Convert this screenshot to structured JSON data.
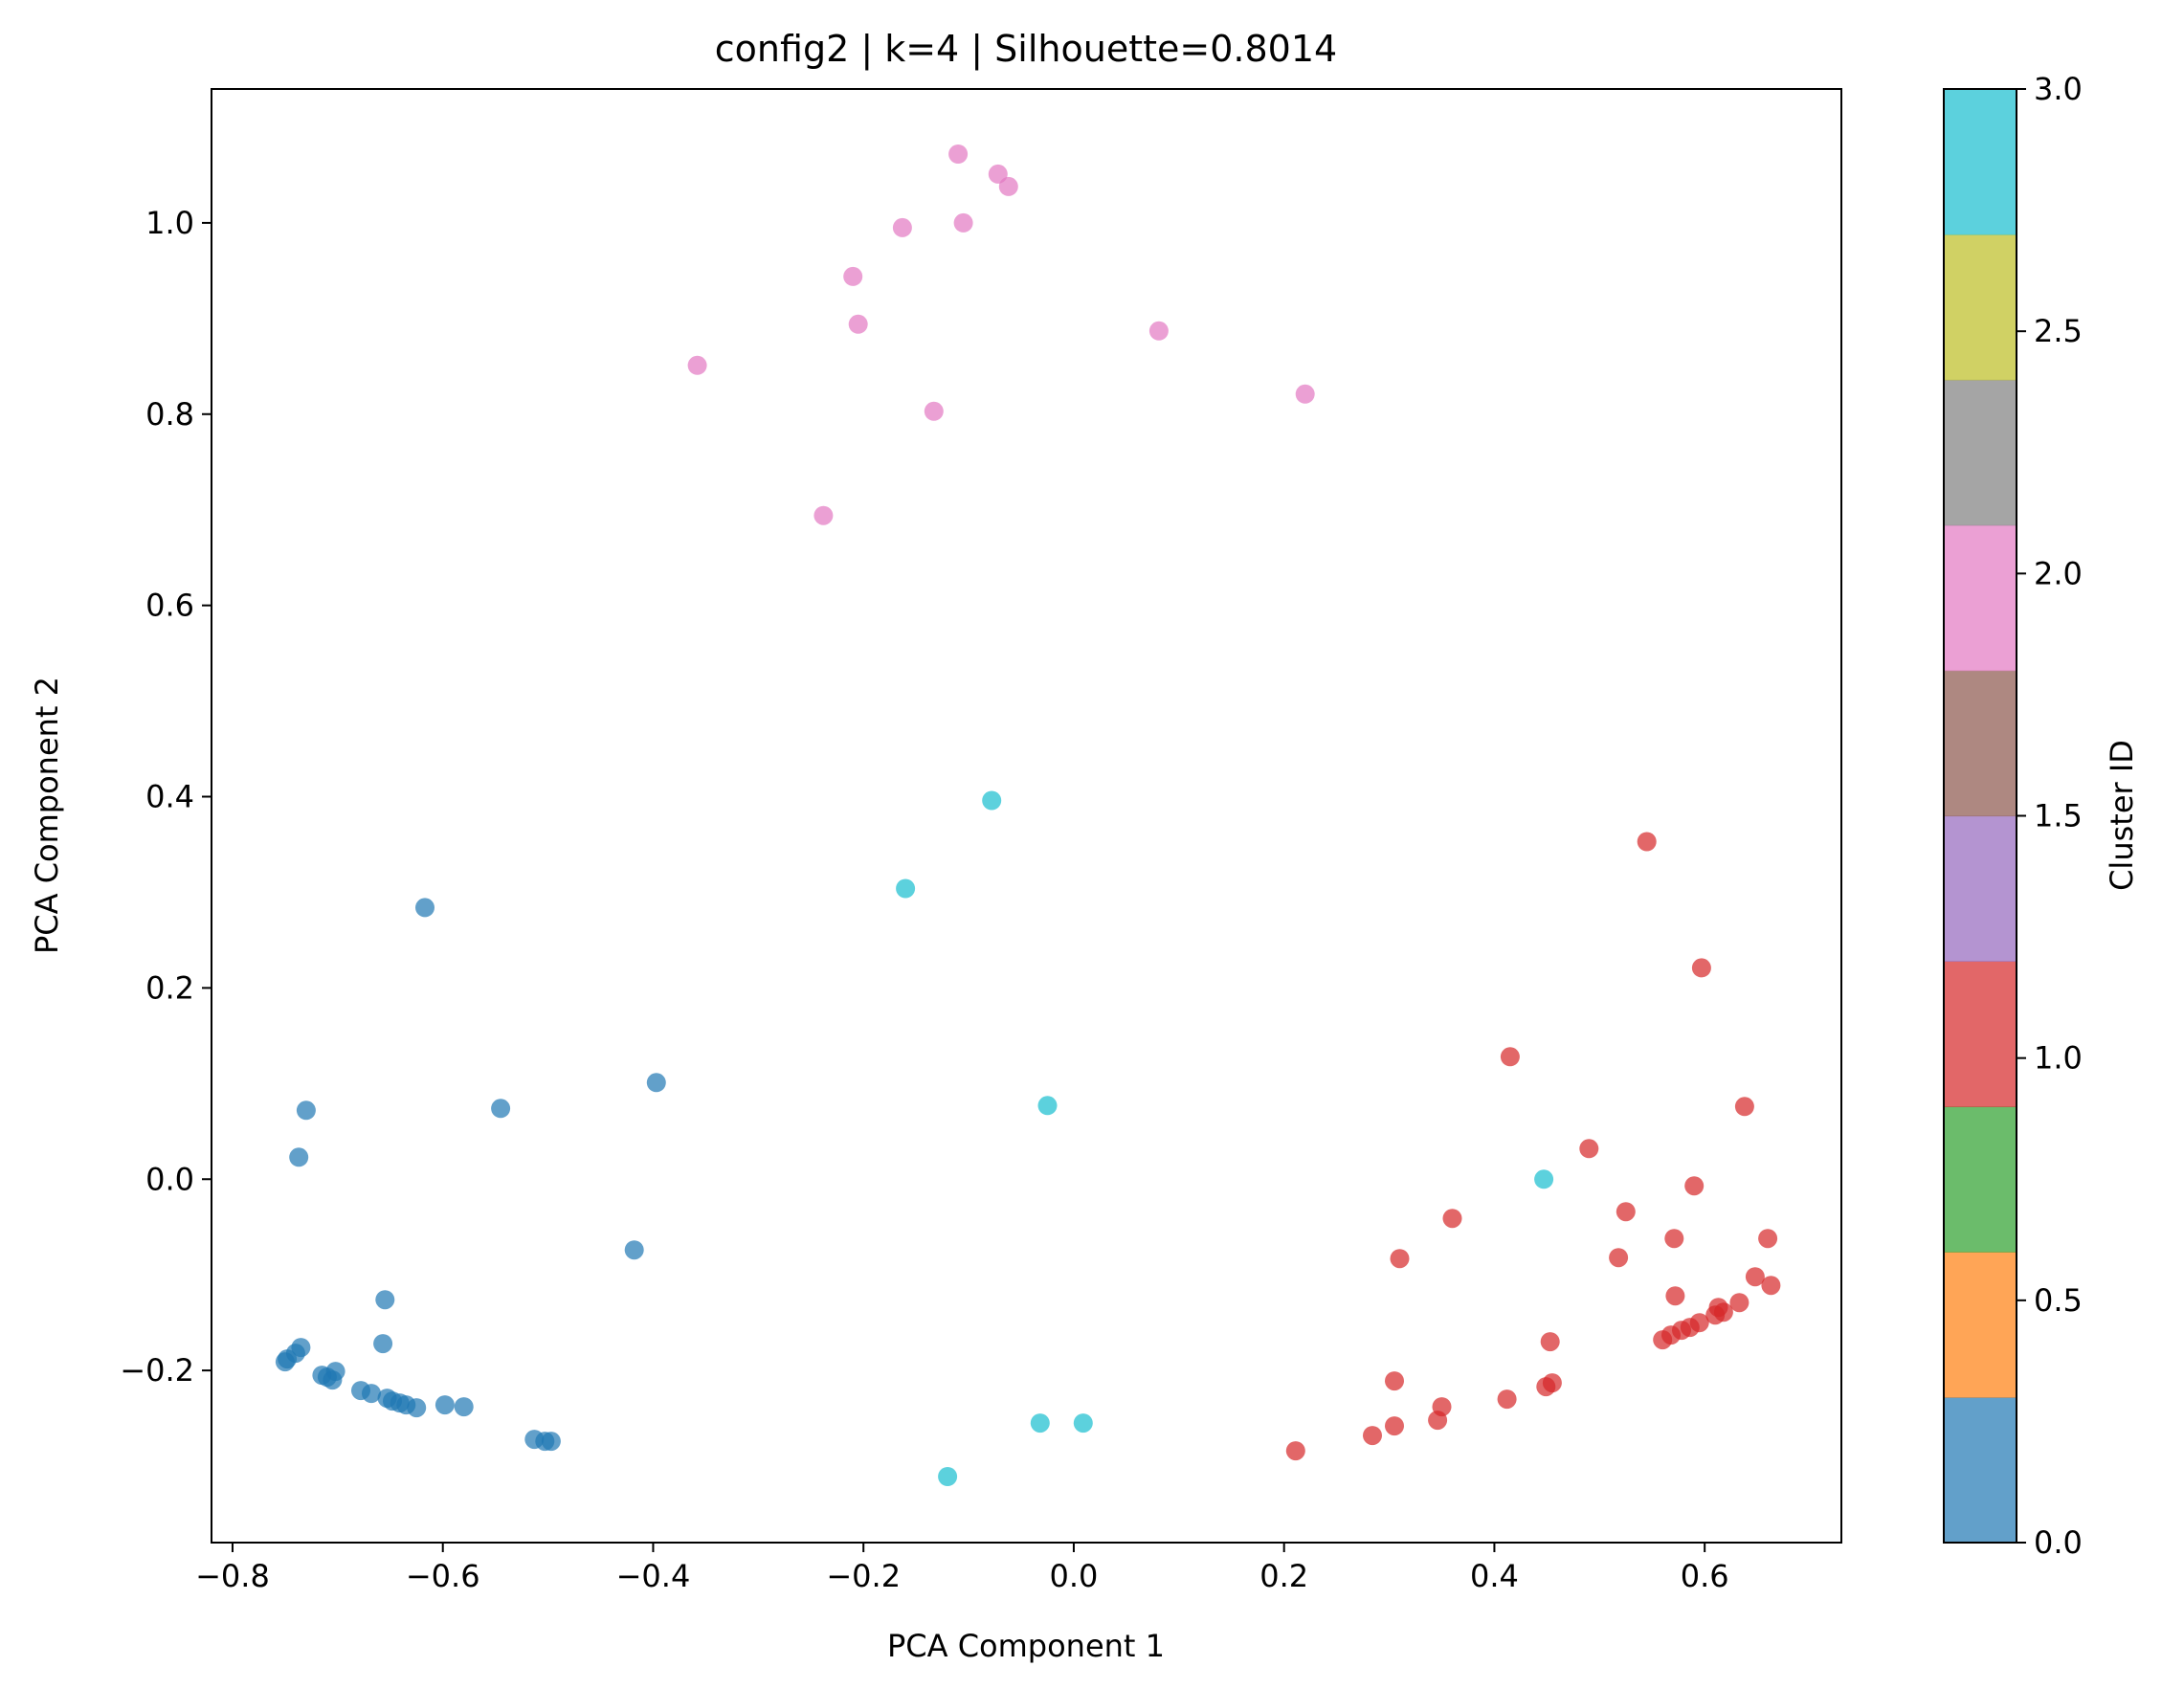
{
  "chart_data": {
    "type": "scatter",
    "title": "config2 | k=4 | Silhouette=0.8014",
    "xlabel": "PCA Component 1",
    "ylabel": "PCA Component 2",
    "xlim": [
      -0.82,
      0.73
    ],
    "ylim": [
      -0.38,
      1.14
    ],
    "xticks": [
      -0.8,
      -0.6,
      -0.4,
      -0.2,
      0.0,
      0.2,
      0.4,
      0.6
    ],
    "xtick_labels": [
      "−0.8",
      "−0.6",
      "−0.4",
      "−0.2",
      "0.0",
      "0.2",
      "0.4",
      "0.6"
    ],
    "yticks": [
      -0.2,
      0.0,
      0.2,
      0.4,
      0.6,
      0.8,
      1.0
    ],
    "ytick_labels": [
      "−0.2",
      "0.0",
      "0.2",
      "0.4",
      "0.6",
      "0.8",
      "1.0"
    ],
    "grid": false,
    "colorbar": {
      "label": "Cluster ID",
      "range": [
        0.0,
        3.0
      ],
      "ticks": [
        0.0,
        0.5,
        1.0,
        1.5,
        2.0,
        2.5,
        3.0
      ],
      "tick_labels": [
        "0.0",
        "0.5",
        "1.0",
        "1.5",
        "2.0",
        "2.5",
        "3.0"
      ],
      "band_colors": [
        "#1f77b4",
        "#ff7f0e",
        "#2ca02c",
        "#d62728",
        "#9467bd",
        "#8c564b",
        "#e377c2",
        "#7f7f7f",
        "#bcbd22",
        "#17becf"
      ]
    },
    "cluster_colors": {
      "0": "#1f77b4",
      "1": "#d62728",
      "2": "#e377c2",
      "3": "#17becf"
    },
    "points": [
      {
        "x": -0.617,
        "y": 0.284,
        "cluster": 0
      },
      {
        "x": -0.73,
        "y": 0.072,
        "cluster": 0
      },
      {
        "x": -0.737,
        "y": 0.023,
        "cluster": 0
      },
      {
        "x": -0.545,
        "y": 0.074,
        "cluster": 0
      },
      {
        "x": -0.397,
        "y": 0.101,
        "cluster": 0
      },
      {
        "x": -0.418,
        "y": -0.074,
        "cluster": 0
      },
      {
        "x": -0.655,
        "y": -0.126,
        "cluster": 0
      },
      {
        "x": -0.657,
        "y": -0.172,
        "cluster": 0
      },
      {
        "x": -0.735,
        "y": -0.176,
        "cluster": 0
      },
      {
        "x": -0.74,
        "y": -0.182,
        "cluster": 0
      },
      {
        "x": -0.748,
        "y": -0.188,
        "cluster": 0
      },
      {
        "x": -0.75,
        "y": -0.191,
        "cluster": 0
      },
      {
        "x": -0.715,
        "y": -0.205,
        "cluster": 0
      },
      {
        "x": -0.71,
        "y": -0.207,
        "cluster": 0
      },
      {
        "x": -0.705,
        "y": -0.21,
        "cluster": 0
      },
      {
        "x": -0.702,
        "y": -0.201,
        "cluster": 0
      },
      {
        "x": -0.678,
        "y": -0.221,
        "cluster": 0
      },
      {
        "x": -0.668,
        "y": -0.224,
        "cluster": 0
      },
      {
        "x": -0.653,
        "y": -0.229,
        "cluster": 0
      },
      {
        "x": -0.648,
        "y": -0.232,
        "cluster": 0
      },
      {
        "x": -0.641,
        "y": -0.234,
        "cluster": 0
      },
      {
        "x": -0.635,
        "y": -0.236,
        "cluster": 0
      },
      {
        "x": -0.625,
        "y": -0.239,
        "cluster": 0
      },
      {
        "x": -0.598,
        "y": -0.236,
        "cluster": 0
      },
      {
        "x": -0.58,
        "y": -0.238,
        "cluster": 0
      },
      {
        "x": -0.513,
        "y": -0.272,
        "cluster": 0
      },
      {
        "x": -0.503,
        "y": -0.274,
        "cluster": 0
      },
      {
        "x": -0.497,
        "y": -0.274,
        "cluster": 0
      },
      {
        "x": 0.545,
        "y": 0.353,
        "cluster": 1
      },
      {
        "x": 0.597,
        "y": 0.221,
        "cluster": 1
      },
      {
        "x": 0.415,
        "y": 0.128,
        "cluster": 1
      },
      {
        "x": 0.638,
        "y": 0.076,
        "cluster": 1
      },
      {
        "x": 0.49,
        "y": 0.032,
        "cluster": 1
      },
      {
        "x": 0.59,
        "y": -0.007,
        "cluster": 1
      },
      {
        "x": 0.525,
        "y": -0.034,
        "cluster": 1
      },
      {
        "x": 0.36,
        "y": -0.041,
        "cluster": 1
      },
      {
        "x": 0.571,
        "y": -0.062,
        "cluster": 1
      },
      {
        "x": 0.66,
        "y": -0.062,
        "cluster": 1
      },
      {
        "x": 0.31,
        "y": -0.083,
        "cluster": 1
      },
      {
        "x": 0.518,
        "y": -0.082,
        "cluster": 1
      },
      {
        "x": 0.648,
        "y": -0.102,
        "cluster": 1
      },
      {
        "x": 0.663,
        "y": -0.111,
        "cluster": 1
      },
      {
        "x": 0.572,
        "y": -0.122,
        "cluster": 1
      },
      {
        "x": 0.633,
        "y": -0.129,
        "cluster": 1
      },
      {
        "x": 0.613,
        "y": -0.134,
        "cluster": 1
      },
      {
        "x": 0.618,
        "y": -0.139,
        "cluster": 1
      },
      {
        "x": 0.61,
        "y": -0.142,
        "cluster": 1
      },
      {
        "x": 0.595,
        "y": -0.15,
        "cluster": 1
      },
      {
        "x": 0.586,
        "y": -0.155,
        "cluster": 1
      },
      {
        "x": 0.578,
        "y": -0.158,
        "cluster": 1
      },
      {
        "x": 0.568,
        "y": -0.163,
        "cluster": 1
      },
      {
        "x": 0.56,
        "y": -0.168,
        "cluster": 1
      },
      {
        "x": 0.453,
        "y": -0.17,
        "cluster": 1
      },
      {
        "x": 0.305,
        "y": -0.211,
        "cluster": 1
      },
      {
        "x": 0.455,
        "y": -0.213,
        "cluster": 1
      },
      {
        "x": 0.449,
        "y": -0.217,
        "cluster": 1
      },
      {
        "x": 0.412,
        "y": -0.23,
        "cluster": 1
      },
      {
        "x": 0.35,
        "y": -0.238,
        "cluster": 1
      },
      {
        "x": 0.346,
        "y": -0.252,
        "cluster": 1
      },
      {
        "x": 0.305,
        "y": -0.258,
        "cluster": 1
      },
      {
        "x": 0.284,
        "y": -0.268,
        "cluster": 1
      },
      {
        "x": 0.211,
        "y": -0.284,
        "cluster": 1
      },
      {
        "x": -0.11,
        "y": 1.072,
        "cluster": 2
      },
      {
        "x": -0.072,
        "y": 1.051,
        "cluster": 2
      },
      {
        "x": -0.062,
        "y": 1.038,
        "cluster": 2
      },
      {
        "x": -0.105,
        "y": 1.0,
        "cluster": 2
      },
      {
        "x": -0.163,
        "y": 0.995,
        "cluster": 2
      },
      {
        "x": -0.21,
        "y": 0.944,
        "cluster": 2
      },
      {
        "x": -0.205,
        "y": 0.894,
        "cluster": 2
      },
      {
        "x": 0.081,
        "y": 0.887,
        "cluster": 2
      },
      {
        "x": -0.358,
        "y": 0.851,
        "cluster": 2
      },
      {
        "x": 0.22,
        "y": 0.821,
        "cluster": 2
      },
      {
        "x": -0.133,
        "y": 0.803,
        "cluster": 2
      },
      {
        "x": -0.238,
        "y": 0.694,
        "cluster": 2
      },
      {
        "x": -0.078,
        "y": 0.396,
        "cluster": 3
      },
      {
        "x": -0.16,
        "y": 0.304,
        "cluster": 3
      },
      {
        "x": -0.025,
        "y": 0.077,
        "cluster": 3
      },
      {
        "x": 0.447,
        "y": 0.0,
        "cluster": 3
      },
      {
        "x": -0.032,
        "y": -0.255,
        "cluster": 3
      },
      {
        "x": 0.009,
        "y": -0.255,
        "cluster": 3
      },
      {
        "x": -0.12,
        "y": -0.311,
        "cluster": 3
      }
    ]
  }
}
